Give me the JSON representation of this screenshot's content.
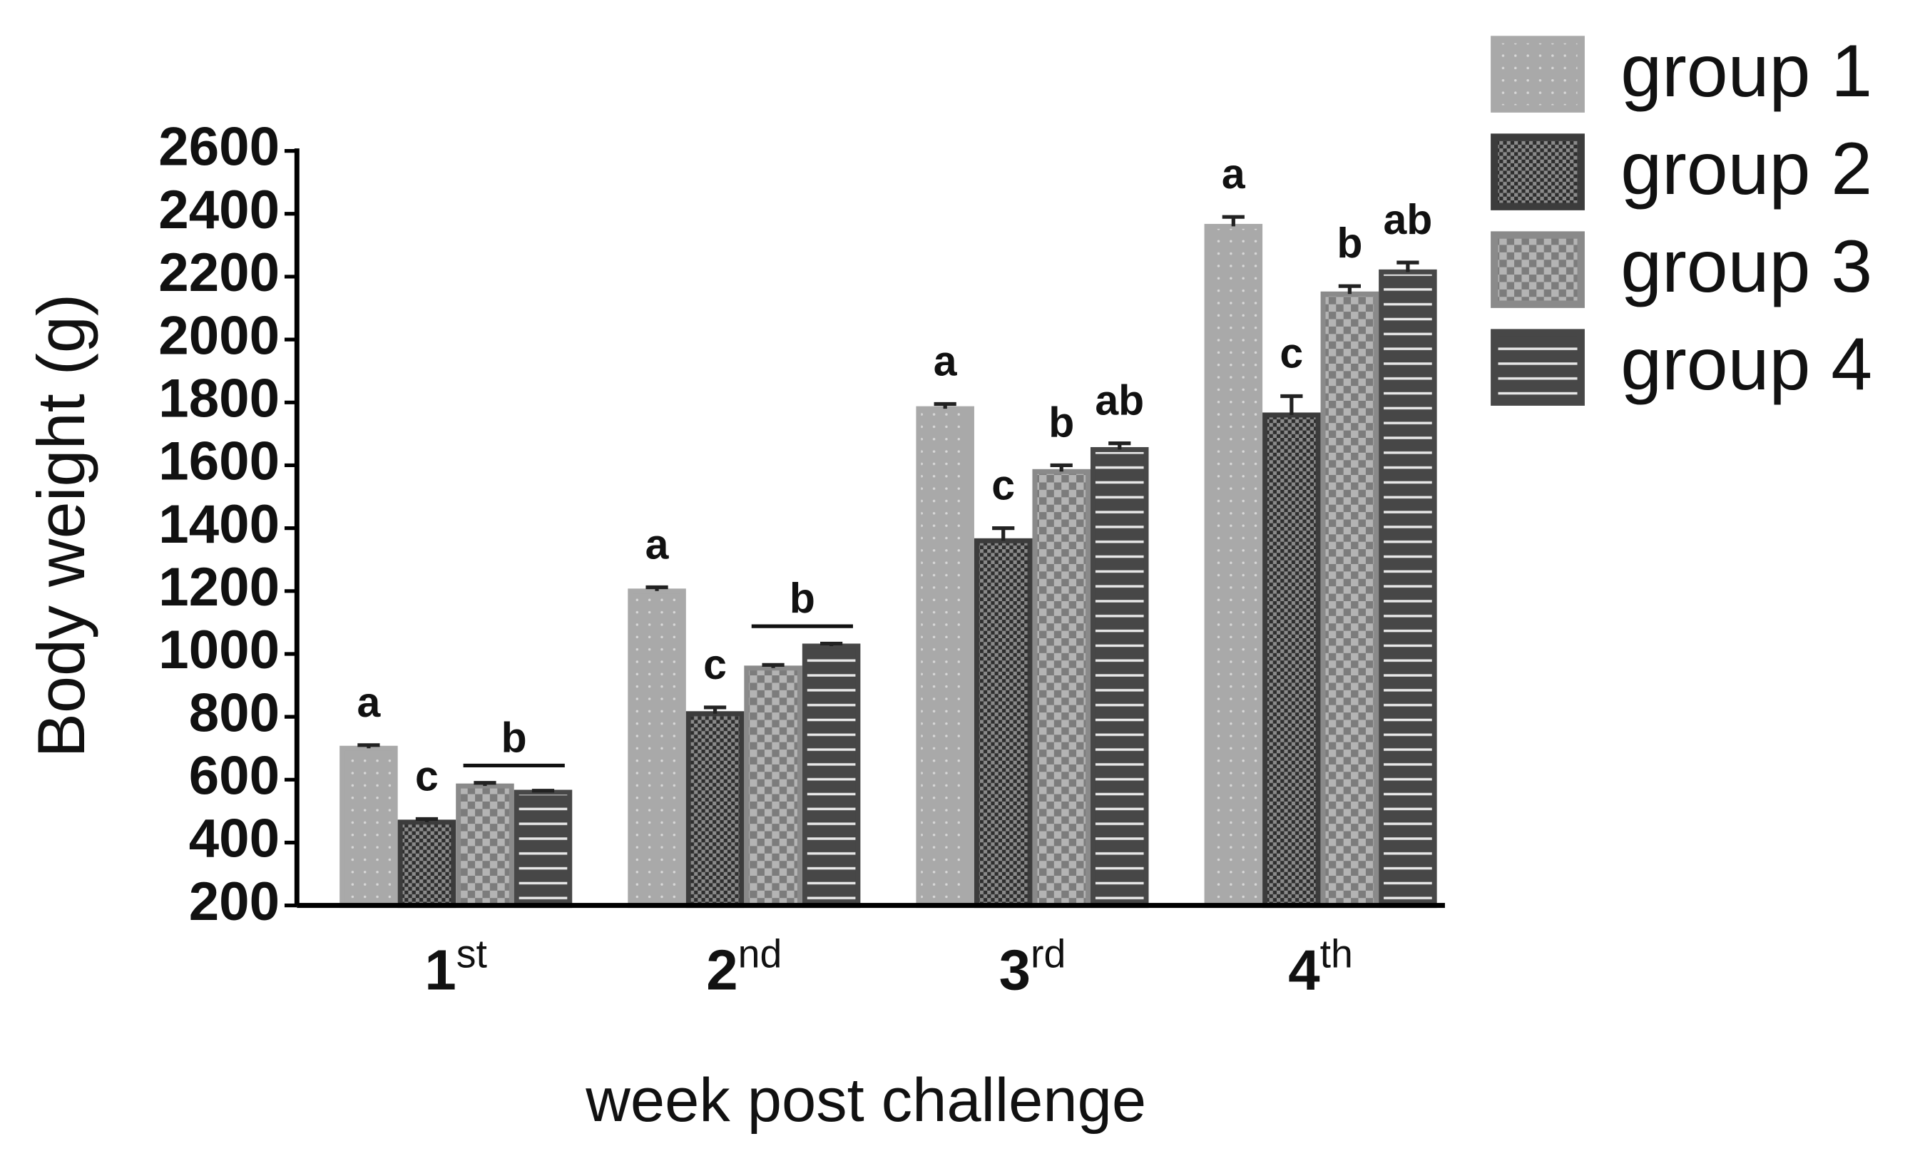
{
  "chart_data": {
    "type": "bar",
    "y_label": "Body weight (g)",
    "x_label": "week post challenge",
    "categories": [
      "1st",
      "2nd",
      "3rd",
      "4th"
    ],
    "ylim": [
      200,
      2600
    ],
    "yticks": [
      200,
      400,
      600,
      800,
      1000,
      1200,
      1400,
      1600,
      1800,
      2000,
      2200,
      2400,
      2600
    ],
    "series": [
      {
        "name": "group 1",
        "color": "#a9a9a9",
        "pattern": "dots",
        "values": [
          700,
          1200,
          1780,
          2360
        ],
        "errors": [
          10,
          12,
          15,
          30
        ]
      },
      {
        "name": "group 2",
        "color": "#3c3c3c",
        "pattern": "fine-check",
        "values": [
          465,
          810,
          1360,
          1760
        ],
        "errors": [
          10,
          20,
          40,
          60
        ]
      },
      {
        "name": "group 3",
        "color": "#8a8a8a",
        "pattern": "check",
        "values": [
          580,
          955,
          1580,
          2145
        ],
        "errors": [
          10,
          10,
          20,
          25
        ]
      },
      {
        "name": "group 4",
        "color": "#474747",
        "pattern": "stripes",
        "values": [
          560,
          1025,
          1650,
          2215
        ],
        "errors": [
          5,
          8,
          20,
          30
        ]
      }
    ],
    "annotations": [
      {
        "text": "a",
        "category": "1st",
        "series": [
          "group 1"
        ]
      },
      {
        "text": "c",
        "category": "1st",
        "series": [
          "group 2"
        ]
      },
      {
        "text": "b",
        "category": "1st",
        "series": [
          "group 3",
          "group 4"
        ]
      },
      {
        "text": "a",
        "category": "2nd",
        "series": [
          "group 1"
        ]
      },
      {
        "text": "c",
        "category": "2nd",
        "series": [
          "group 2"
        ]
      },
      {
        "text": "b",
        "category": "2nd",
        "series": [
          "group 3",
          "group 4"
        ]
      },
      {
        "text": "a",
        "category": "3rd",
        "series": [
          "group 1"
        ]
      },
      {
        "text": "c",
        "category": "3rd",
        "series": [
          "group 2"
        ]
      },
      {
        "text": "b",
        "category": "3rd",
        "series": [
          "group 3"
        ]
      },
      {
        "text": "ab",
        "category": "3rd",
        "series": [
          "group 4"
        ]
      },
      {
        "text": "a",
        "category": "4th",
        "series": [
          "group 1"
        ]
      },
      {
        "text": "c",
        "category": "4th",
        "series": [
          "group 2"
        ]
      },
      {
        "text": "b",
        "category": "4th",
        "series": [
          "group 3"
        ]
      },
      {
        "text": "ab",
        "category": "4th",
        "series": [
          "group 4"
        ]
      }
    ],
    "legend": "top-right"
  }
}
